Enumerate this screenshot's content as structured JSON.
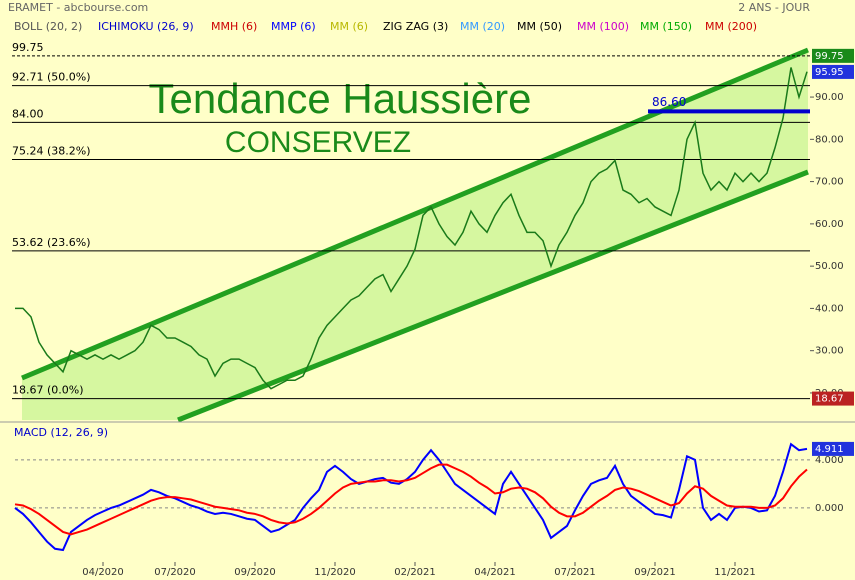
{
  "header": {
    "left": "ERAMET - abcbourse.com",
    "right": "2 ANS - JOUR"
  },
  "indicators": [
    {
      "text": "BOLL (20, 2)",
      "color": "#555555"
    },
    {
      "text": "ICHIMOKU (26, 9)",
      "color": "#0000cc"
    },
    {
      "text": "MMH (6)",
      "color": "#cc0000"
    },
    {
      "text": "MMP (6)",
      "color": "#0000ff"
    },
    {
      "text": "MM (6)",
      "color": "#b8b800"
    },
    {
      "text": "ZIG ZAG (3)",
      "color": "#000000"
    },
    {
      "text": "MM (20)",
      "color": "#3399ff"
    },
    {
      "text": "MM (50)",
      "color": "#000000"
    },
    {
      "text": "MM (100)",
      "color": "#cc00cc"
    },
    {
      "text": "MM (150)",
      "color": "#00aa00"
    },
    {
      "text": "MM (200)",
      "color": "#cc0000"
    }
  ],
  "chart_data": [
    {
      "type": "line",
      "title": "Tendance Haussière",
      "subtitle": "CONSERVEZ",
      "color": "#1a7a1a",
      "categories": [
        null,
        null,
        null,
        null,
        null,
        null,
        null,
        null,
        null,
        null,
        null,
        "04/2020",
        null,
        null,
        null,
        null,
        null,
        null,
        null,
        null,
        "07/2020",
        null,
        null,
        null,
        null,
        null,
        null,
        null,
        null,
        null,
        "09/2020",
        null,
        null,
        null,
        null,
        null,
        null,
        null,
        null,
        null,
        "11/2020",
        null,
        null,
        null,
        null,
        null,
        null,
        null,
        null,
        null,
        "02/2021",
        null,
        null,
        null,
        null,
        null,
        null,
        null,
        null,
        null,
        "04/2021",
        null,
        null,
        null,
        null,
        null,
        null,
        null,
        null,
        null,
        "07/2021",
        null,
        null,
        null,
        null,
        null,
        null,
        null,
        null,
        null,
        "09/2021",
        null,
        null,
        null,
        null,
        null,
        null,
        null,
        null,
        null,
        "11/2021",
        null,
        null,
        null,
        null,
        null,
        null,
        null,
        null,
        null
      ],
      "values": [
        40,
        40,
        38,
        32,
        29,
        27,
        25,
        30,
        29,
        28,
        29,
        28,
        29,
        28,
        29,
        30,
        32,
        36,
        35,
        33,
        33,
        32,
        31,
        29,
        28,
        24,
        27,
        28,
        28,
        27,
        26,
        23,
        21,
        22,
        23,
        23,
        24,
        28,
        33,
        36,
        38,
        40,
        42,
        43,
        45,
        47,
        48,
        44,
        47,
        50,
        54,
        62,
        64,
        60,
        57,
        55,
        58,
        63,
        60,
        58,
        62,
        65,
        67,
        62,
        58,
        58,
        56,
        50,
        55,
        58,
        62,
        65,
        70,
        72,
        73,
        75,
        68,
        67,
        65,
        66,
        64,
        63,
        62,
        68,
        80,
        84,
        72,
        68,
        70,
        68,
        72,
        70,
        72,
        70,
        72,
        78,
        85,
        97,
        90,
        96
      ],
      "ylim": [
        13.6,
        103.5
      ],
      "yticks": [
        {
          "value": 20,
          "label": "20.00"
        },
        {
          "value": 30,
          "label": "30.00"
        },
        {
          "value": 40,
          "label": "40.00"
        },
        {
          "value": 50,
          "label": "50.00"
        },
        {
          "value": 60,
          "label": "60.00"
        },
        {
          "value": 70,
          "label": "70.00"
        },
        {
          "value": 80,
          "label": "80.00"
        },
        {
          "value": 90,
          "label": "90.00"
        }
      ],
      "levels": [
        {
          "value": 99.75,
          "label": "99.75"
        },
        {
          "value": 92.71,
          "label": "92.71 (50.0%)"
        },
        {
          "value": 84,
          "label": "84.00"
        },
        {
          "value": 75.24,
          "label": "75.24 (38.2%)"
        },
        {
          "value": 53.62,
          "label": "53.62 (23.6%)"
        },
        {
          "value": 18.67,
          "label": "18.67 (0.0%)"
        }
      ],
      "marker": {
        "value": 86.6,
        "label": "86.60",
        "color": "#0000cc"
      },
      "price_tags": [
        {
          "value": 99.75,
          "label": "99.75",
          "color": "#1a8a1a"
        },
        {
          "value": 95.95,
          "label": "95.95",
          "color": "#2233dd"
        },
        {
          "value": 18.67,
          "label": "18.67",
          "color": "#bb2222"
        }
      ]
    },
    {
      "type": "line",
      "title": "MACD (12, 26, 9)",
      "series": [
        {
          "color": "#0000ff",
          "values": [
            0,
            -0.5,
            -1.2,
            -2,
            -2.8,
            -3.4,
            -3.5,
            -2,
            -1.5,
            -1,
            -0.6,
            -0.3,
            0,
            0.2,
            0.5,
            0.8,
            1.1,
            1.5,
            1.3,
            1,
            0.8,
            0.5,
            0.2,
            0,
            -0.3,
            -0.5,
            -0.4,
            -0.5,
            -0.7,
            -0.9,
            -1,
            -1.5,
            -2,
            -1.8,
            -1.4,
            -1,
            0,
            0.8,
            1.5,
            3,
            3.5,
            3,
            2.4,
            2,
            2.2,
            2.4,
            2.5,
            2.1,
            2,
            2.4,
            3,
            4,
            4.8,
            4,
            3,
            2,
            1.5,
            1,
            0.5,
            0,
            -0.5,
            2,
            3,
            2,
            1,
            0,
            -1,
            -2.5,
            -2,
            -1.5,
            -0.2,
            1,
            2,
            2.3,
            2.5,
            3.5,
            2,
            1,
            0.5,
            0,
            -0.5,
            -0.6,
            -0.8,
            1.5,
            4.3,
            4,
            0,
            -1,
            -0.5,
            -1,
            0,
            0.1,
            0,
            -0.3,
            -0.2,
            1,
            3,
            5.3,
            4.8,
            4.911
          ]
        },
        {
          "color": "#ff0000",
          "values": [
            0.3,
            0.2,
            -0.1,
            -0.5,
            -1,
            -1.5,
            -2,
            -2.2,
            -2,
            -1.8,
            -1.5,
            -1.2,
            -0.9,
            -0.6,
            -0.3,
            0,
            0.3,
            0.6,
            0.8,
            0.9,
            0.9,
            0.8,
            0.7,
            0.5,
            0.3,
            0.1,
            0,
            -0.1,
            -0.2,
            -0.4,
            -0.5,
            -0.7,
            -1,
            -1.2,
            -1.3,
            -1.2,
            -0.9,
            -0.5,
            0,
            0.6,
            1.2,
            1.7,
            2,
            2.1,
            2.2,
            2.2,
            2.3,
            2.3,
            2.2,
            2.3,
            2.5,
            2.9,
            3.3,
            3.6,
            3.6,
            3.3,
            3,
            2.6,
            2.1,
            1.7,
            1.2,
            1.3,
            1.6,
            1.7,
            1.6,
            1.3,
            0.8,
            0.1,
            -0.4,
            -0.7,
            -0.7,
            -0.4,
            0.1,
            0.6,
            1,
            1.5,
            1.7,
            1.6,
            1.4,
            1.1,
            0.8,
            0.5,
            0.2,
            0.4,
            1.2,
            1.8,
            1.6,
            1,
            0.6,
            0.2,
            0.1,
            0.1,
            0.1,
            0,
            0,
            0.2,
            0.8,
            1.8,
            2.6,
            3.2
          ]
        }
      ],
      "ylim": [
        -4.75,
        6.9
      ],
      "yticks": [
        {
          "value": 4,
          "label": "4.000"
        },
        {
          "value": 0,
          "label": "0.000"
        }
      ],
      "last_tag": {
        "value": 4.911,
        "label": "4.911",
        "color": "#2233dd"
      }
    }
  ]
}
